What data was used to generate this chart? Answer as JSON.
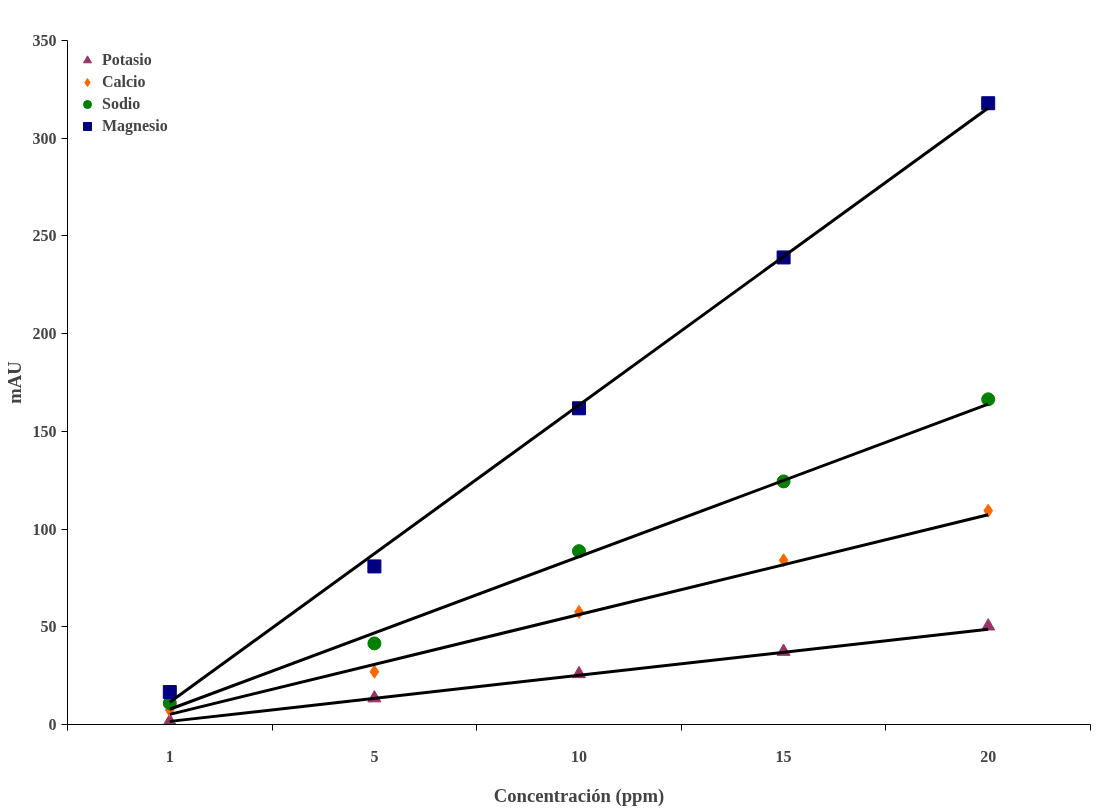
{
  "chart_data": {
    "type": "scatter",
    "xlabel": "Concentración (ppm)",
    "ylabel": "mAU",
    "categories": [
      "1",
      "5",
      "10",
      "15",
      "20"
    ],
    "ylim": [
      0,
      350
    ],
    "yticks": [
      0,
      50,
      100,
      150,
      200,
      250,
      300,
      350
    ],
    "grid": false,
    "legend": "top left",
    "series": [
      {
        "name": "Potasio",
        "color": "#993366",
        "marker": "triangle",
        "values": [
          1.6,
          13.5,
          25.9,
          37.3,
          50.3
        ]
      },
      {
        "name": "Calcio",
        "color": "#ff6600",
        "marker": "diamond",
        "values": [
          7.3,
          27,
          57.6,
          84,
          109.4
        ]
      },
      {
        "name": "Sodio",
        "color": "#008000",
        "marker": "circle",
        "values": [
          10.9,
          41.5,
          88.7,
          124.4,
          166.4
        ]
      },
      {
        "name": "Magnesio",
        "color": "#000080",
        "marker": "square",
        "values": [
          16.6,
          80.9,
          161.8,
          239,
          317.9
        ]
      },
      {
        "type": "line",
        "color": "#000000",
        "x": [
          "1",
          "20"
        ],
        "values": [
          1.6,
          48.7
        ]
      },
      {
        "type": "line",
        "color": "#000000",
        "x": [
          "1",
          "20"
        ],
        "values": [
          5.2,
          107.3
        ]
      },
      {
        "type": "line",
        "color": "#000000",
        "x": [
          "1",
          "20"
        ],
        "values": [
          7.8,
          163.9
        ]
      },
      {
        "type": "line",
        "color": "#000000",
        "x": [
          "1",
          "20"
        ],
        "values": [
          11.4,
          315.5
        ]
      }
    ]
  }
}
